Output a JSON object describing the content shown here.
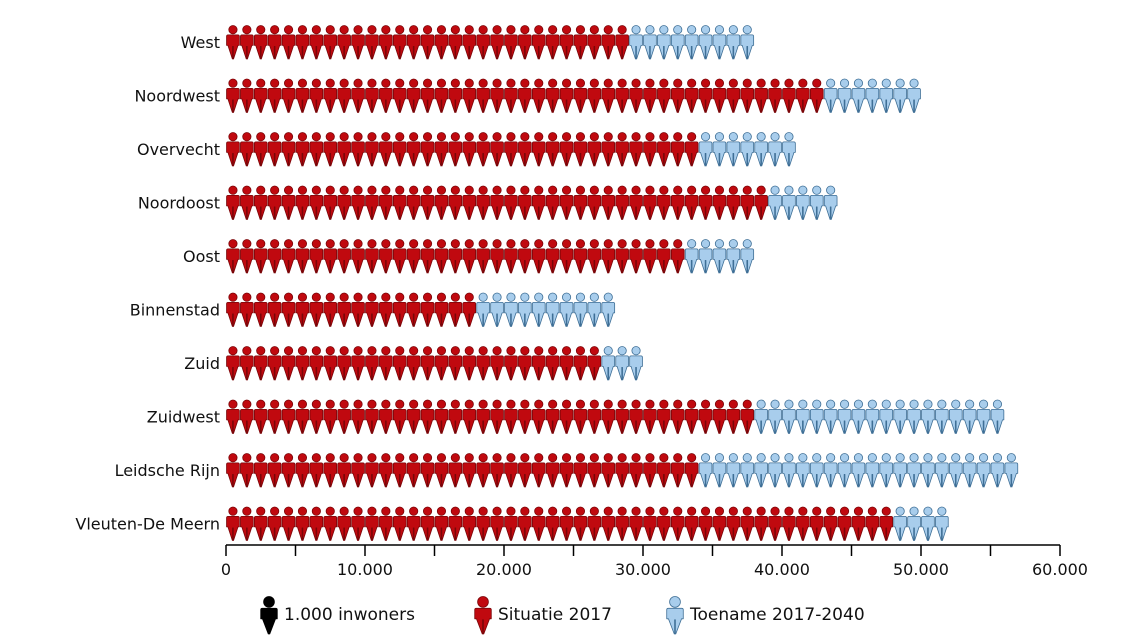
{
  "chart_data": {
    "type": "bar",
    "title": "",
    "xlabel": "",
    "ylabel": "",
    "unit_per_icon": 1000,
    "categories": [
      "West",
      "Noordwest",
      "Overvecht",
      "Noordoost",
      "Oost",
      "Binnenstad",
      "Zuid",
      "Zuidwest",
      "Leidsche Rijn",
      "Vleuten-De Meern"
    ],
    "series": [
      {
        "name": "Situatie 2017",
        "values": [
          29000,
          43000,
          34000,
          39000,
          33000,
          18000,
          27000,
          38000,
          34000,
          48000
        ]
      },
      {
        "name": "Toename 2017-2040",
        "values": [
          9000,
          7000,
          7000,
          5000,
          5000,
          10000,
          3000,
          18000,
          23000,
          4000
        ]
      }
    ],
    "xlim": [
      0,
      60000
    ],
    "ticks": [
      {
        "value": 0,
        "label": "0"
      },
      {
        "value": 5000,
        "label": ""
      },
      {
        "value": 10000,
        "label": "10.000"
      },
      {
        "value": 15000,
        "label": ""
      },
      {
        "value": 20000,
        "label": "20.000"
      },
      {
        "value": 25000,
        "label": ""
      },
      {
        "value": 30000,
        "label": "30.000"
      },
      {
        "value": 35000,
        "label": ""
      },
      {
        "value": 40000,
        "label": "40.000"
      },
      {
        "value": 45000,
        "label": ""
      },
      {
        "value": 50000,
        "label": "50.000"
      },
      {
        "value": 55000,
        "label": ""
      },
      {
        "value": 60000,
        "label": "60.000"
      }
    ],
    "legend": {
      "placement": "bottom",
      "items": [
        {
          "label": "1.000 inwoners",
          "color": "#000000"
        },
        {
          "label": "Situatie 2017",
          "color": "#c0090f"
        },
        {
          "label": "Toename 2017-2040",
          "color": "#a8cdec"
        }
      ]
    },
    "colors": {
      "situatie": "#c0090f",
      "situatie_stroke": "#7a0508",
      "toename": "#a8cdec",
      "toename_stroke": "#3f6f96",
      "unit": "#000000",
      "axis": "#000000"
    }
  }
}
